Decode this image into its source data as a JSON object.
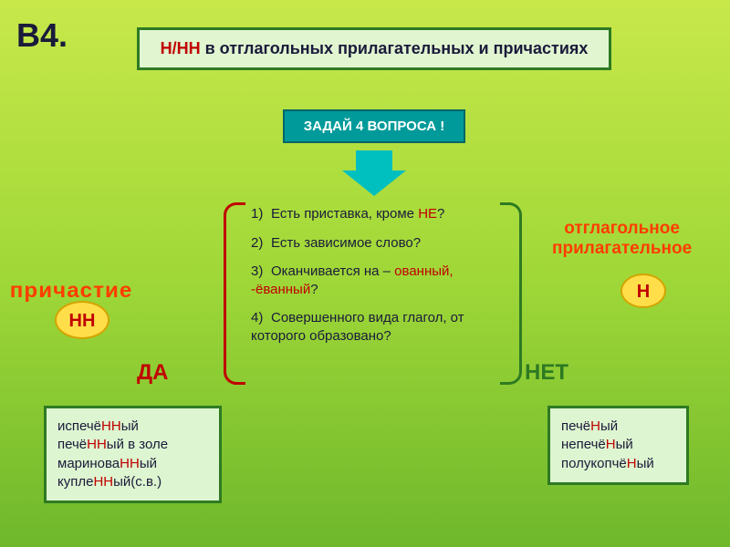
{
  "slideLabel": "В4.",
  "title": {
    "part1": "Н/НН",
    "part2": " в отглагольных прилагательных и причастиях"
  },
  "subtitle": "ЗАДАЙ 4 ВОПРОСА !",
  "questions": [
    {
      "num": "1)",
      "pre": "Есть приставка, кроме ",
      "hl": "НЕ",
      "post": "?"
    },
    {
      "num": "2)",
      "pre": "Есть зависимое слово?",
      "hl": "",
      "post": ""
    },
    {
      "num": "3)",
      "pre": "Оканчивается на – ",
      "hl": "ованный, -ёванный",
      "post": "?"
    },
    {
      "num": "4)",
      "pre": "Совершенного вида глагол, от которого образовано?",
      "hl": "",
      "post": ""
    }
  ],
  "sideLeft": "причастие",
  "sideRightLine1": "отглагольное",
  "sideRightLine2": "прилагательное",
  "circleLeft": "НН",
  "circleRight": "Н",
  "yes": "ДА",
  "no": "НЕТ",
  "examplesLeft": {
    "l1a": "испечё",
    "l1b": "НН",
    "l1c": "ый",
    "l2a": "печё",
    "l2b": "НН",
    "l2c": "ый в золе",
    "l3a": "маринова",
    "l3b": "НН",
    "l3c": "ый",
    "l4a": "купле",
    "l4b": "НН",
    "l4c": "ый(с.в.)"
  },
  "examplesRight": {
    "l1a": "печё",
    "l1b": "Н",
    "l1c": "ый",
    "l2a": "непечё",
    "l2b": "Н",
    "l2c": "ый",
    "l3a": "полукопчё",
    "l3b": "Н",
    "l3c": "ый"
  },
  "colors": {
    "bgGradTop": "#c8e84a",
    "bgGradBot": "#6fb82c",
    "boxBg": "#e0f5d0",
    "boxBorder": "#2e7a22",
    "red": "#c00000",
    "orange": "#ff3c00",
    "yellow": "#ffde4a",
    "teal": "#00bfbf"
  }
}
